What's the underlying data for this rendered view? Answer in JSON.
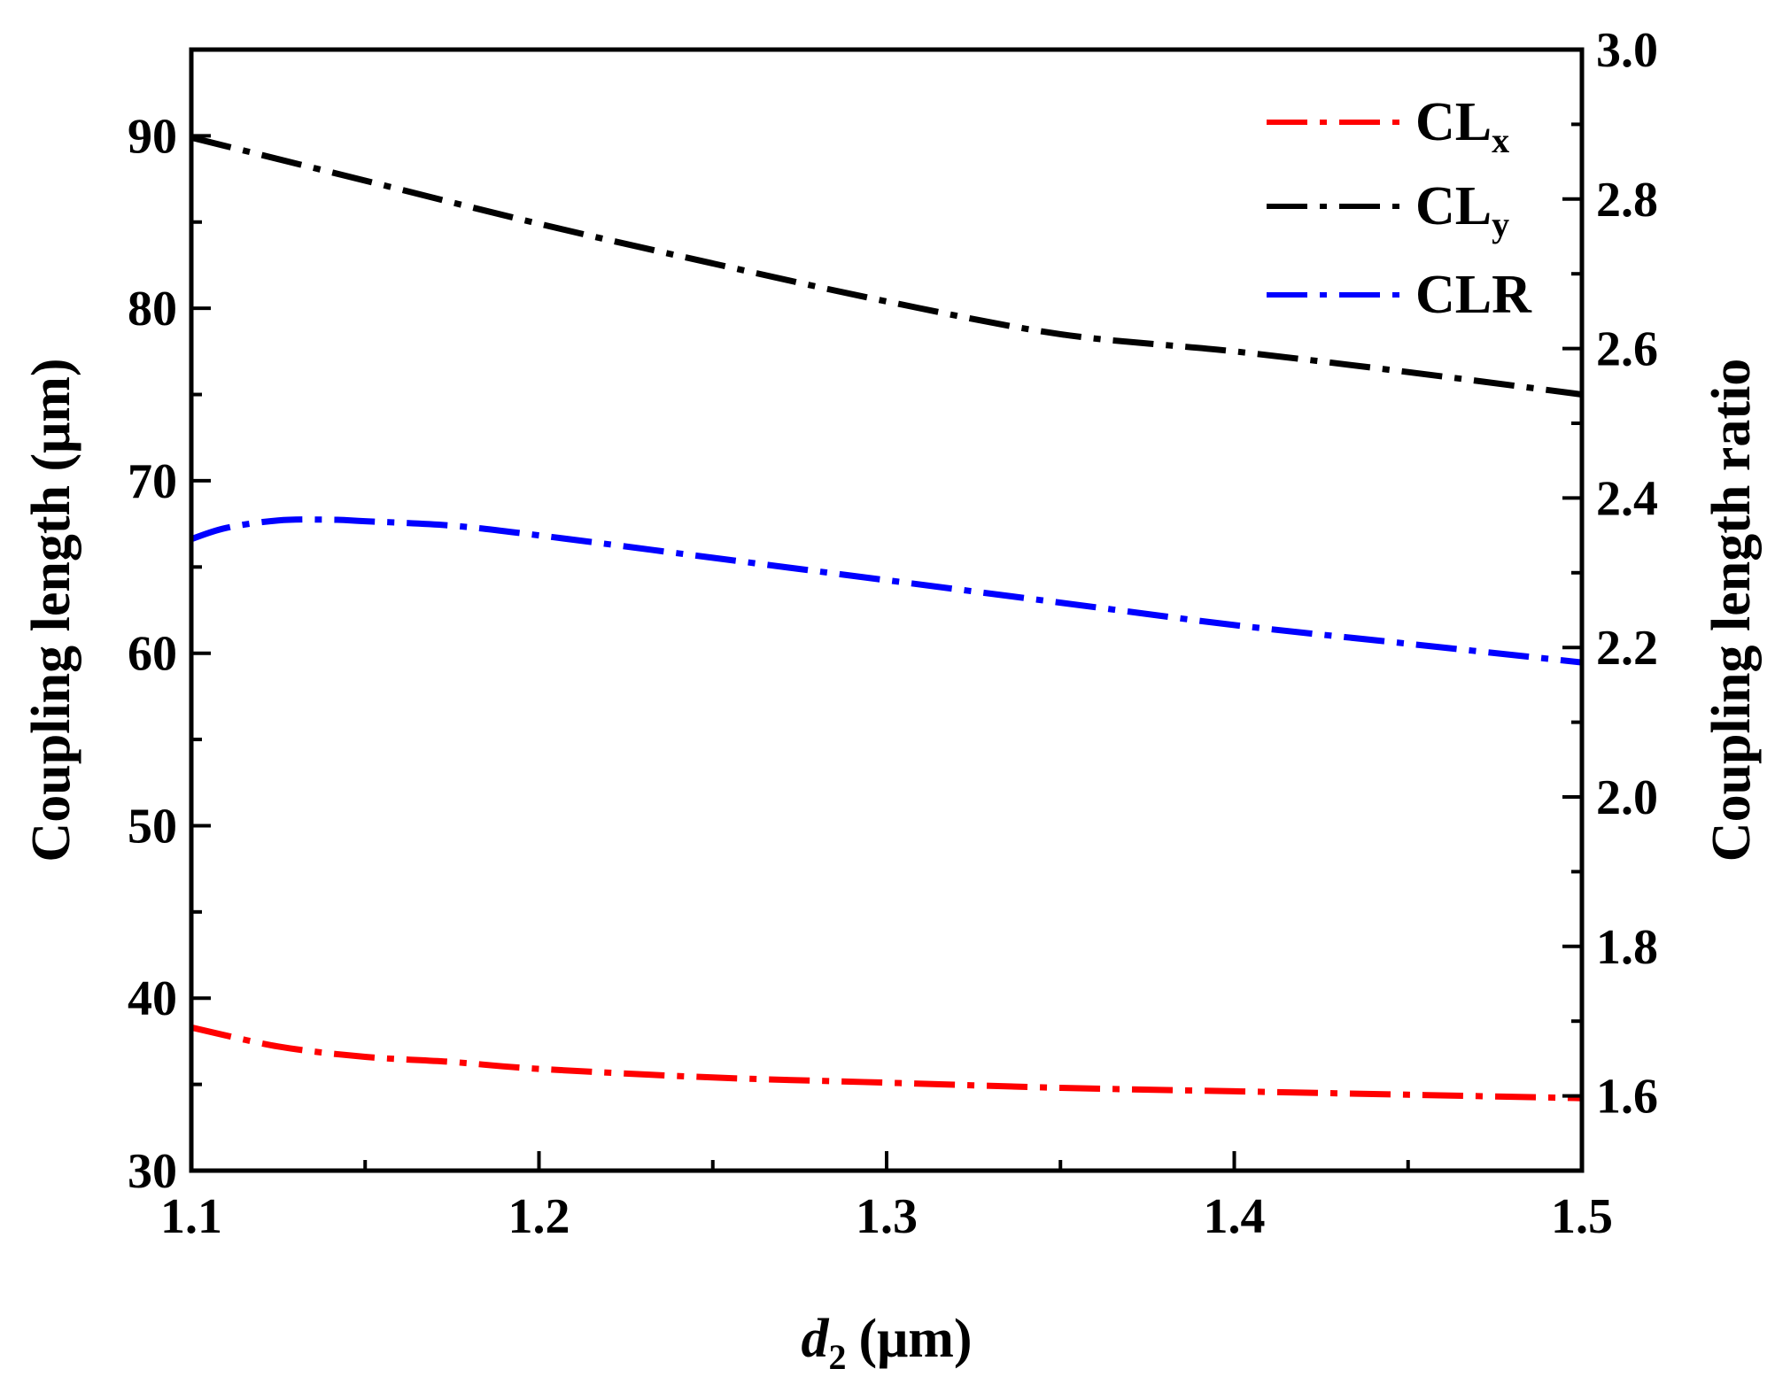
{
  "chart_data": {
    "type": "line",
    "xlabel": {
      "main": "d",
      "sub": "2",
      "unit": "(μm)"
    },
    "ylabel": "Coupling length (μm)",
    "y2label": "Coupling length ratio",
    "xlim": [
      1.1,
      1.5
    ],
    "ylim": [
      30,
      95
    ],
    "y2lim": [
      1.5,
      3.0
    ],
    "x_ticks": [
      "1.1",
      "1.2",
      "1.3",
      "1.4",
      "1.5"
    ],
    "y_ticks": [
      "30",
      "40",
      "50",
      "60",
      "70",
      "80",
      "90"
    ],
    "y2_ticks": [
      "1.6",
      "1.8",
      "2.0",
      "2.2",
      "2.4",
      "2.6",
      "2.8",
      "3.0"
    ],
    "grid": false,
    "legend_position": "top-right",
    "series": [
      {
        "name": "CLx",
        "label_main": "CL",
        "label_sub": "x",
        "axis": "left",
        "color": "#ff0000",
        "style": "dash-dot",
        "x": [
          1.1,
          1.125,
          1.15,
          1.175,
          1.2,
          1.25,
          1.3,
          1.35,
          1.4,
          1.45,
          1.5
        ],
        "y": [
          38.3,
          37.2,
          36.6,
          36.3,
          35.9,
          35.4,
          35.1,
          34.8,
          34.6,
          34.4,
          34.2
        ]
      },
      {
        "name": "CLy",
        "label_main": "CL",
        "label_sub": "y",
        "axis": "left",
        "color": "#000000",
        "style": "dash-dot",
        "x": [
          1.1,
          1.15,
          1.2,
          1.25,
          1.3,
          1.35,
          1.4,
          1.45,
          1.5
        ],
        "y": [
          89.9,
          87.4,
          84.9,
          82.6,
          80.4,
          78.5,
          77.5,
          76.3,
          75.0
        ]
      },
      {
        "name": "CLR",
        "label_main": "CLR",
        "label_sub": "",
        "axis": "right",
        "color": "#0000ff",
        "style": "dash-dot",
        "x": [
          1.1,
          1.11,
          1.125,
          1.14,
          1.15,
          1.175,
          1.2,
          1.25,
          1.3,
          1.35,
          1.4,
          1.45,
          1.5
        ],
        "y": [
          2.345,
          2.36,
          2.37,
          2.371,
          2.369,
          2.363,
          2.35,
          2.32,
          2.29,
          2.26,
          2.23,
          2.205,
          2.18
        ]
      }
    ]
  }
}
